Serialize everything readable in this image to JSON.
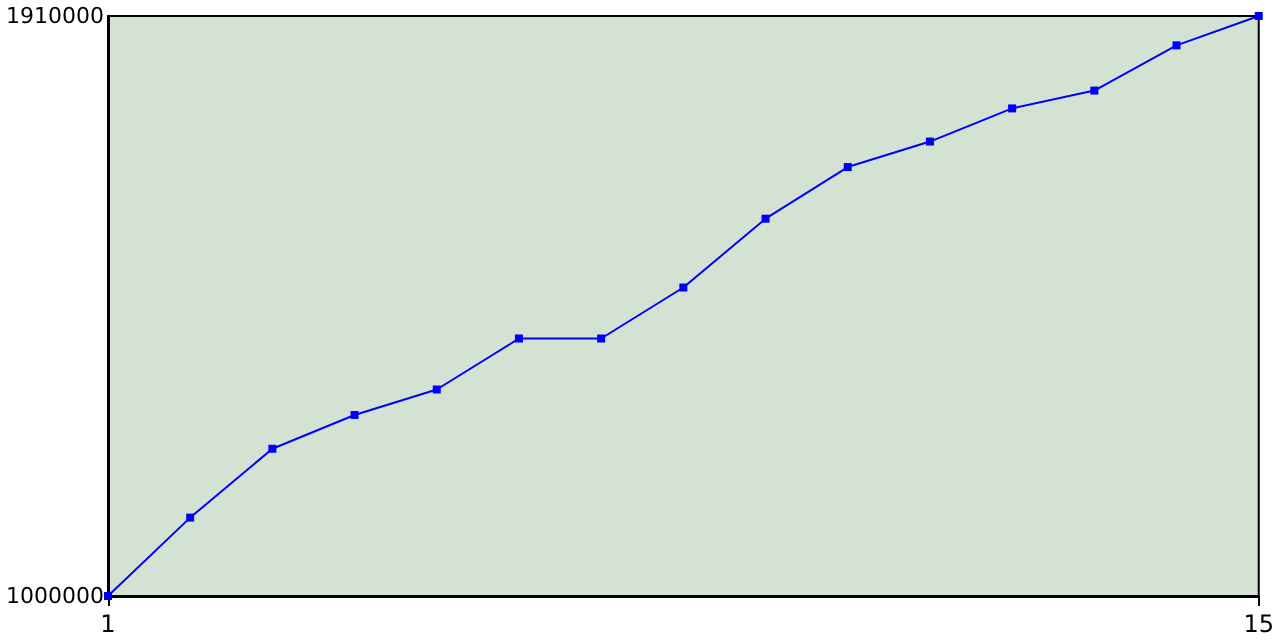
{
  "chart_data": {
    "type": "line",
    "x": [
      1,
      2,
      3,
      4,
      5,
      6,
      7,
      8,
      9,
      10,
      11,
      12,
      13,
      14,
      15
    ],
    "series": [
      {
        "color": "#0000ff",
        "values": [
          1000000,
          1123000,
          1231000,
          1284000,
          1324000,
          1404000,
          1404000,
          1484000,
          1592000,
          1673000,
          1713000,
          1765000,
          1793000,
          1864000,
          1910000
        ]
      }
    ],
    "xlim": [
      1,
      15
    ],
    "xticks": [
      1,
      15
    ],
    "ylim": [
      1000000,
      1910000
    ],
    "yticks": [
      1000000,
      1910000
    ],
    "grid": false,
    "marker": "square",
    "line_style": "solid"
  }
}
